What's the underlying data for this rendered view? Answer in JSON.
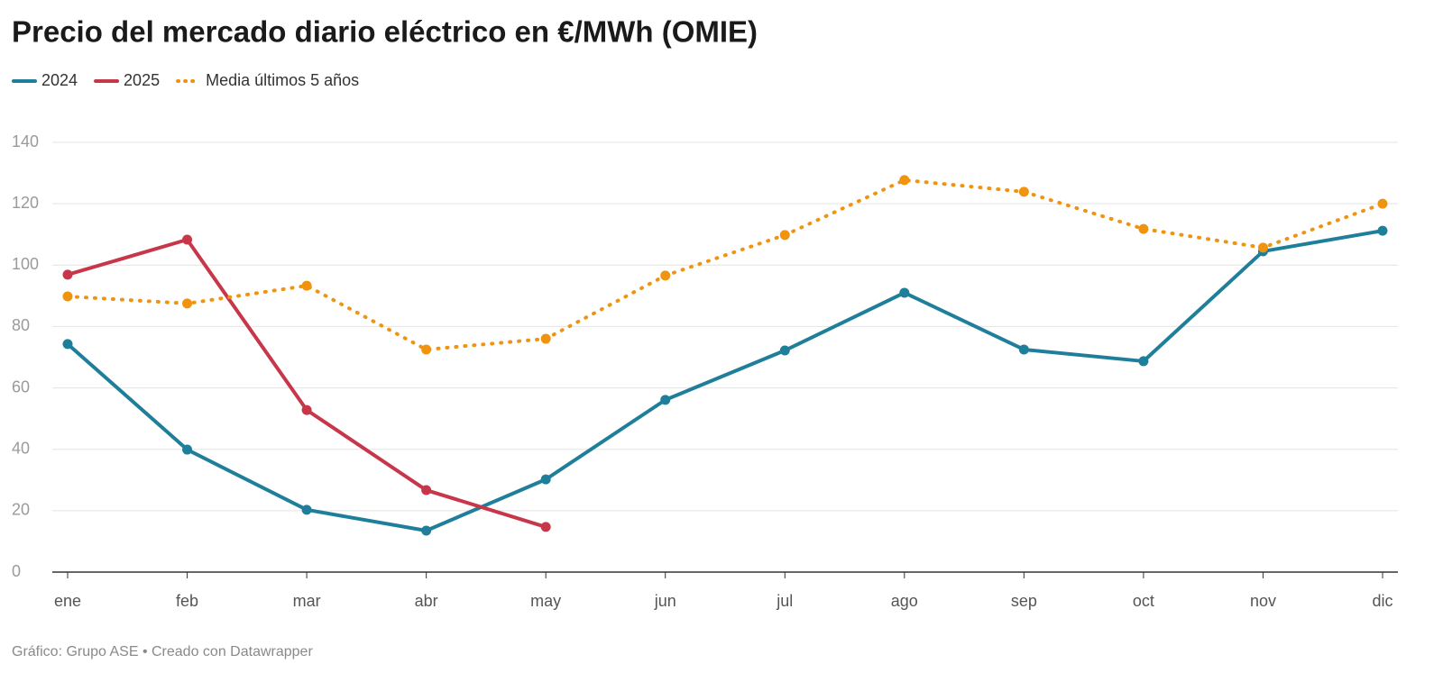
{
  "chart_data": {
    "type": "line",
    "title": "Precio del mercado diario eléctrico en €/MWh (OMIE)",
    "source": "Gráfico: Grupo ASE • Creado con Datawrapper",
    "categories": [
      "ene",
      "feb",
      "mar",
      "abr",
      "may",
      "jun",
      "jul",
      "ago",
      "sep",
      "oct",
      "nov",
      "dic"
    ],
    "series": [
      {
        "name": "2024",
        "color": "#1f7f9a",
        "style": "solid",
        "values": [
          74.3,
          39.9,
          20.3,
          13.5,
          30.2,
          56.1,
          72.2,
          91.0,
          72.5,
          68.7,
          104.5,
          111.2
        ]
      },
      {
        "name": "2025",
        "color": "#c8364a",
        "style": "solid",
        "values": [
          96.9,
          108.3,
          52.8,
          26.7,
          14.7,
          null,
          null,
          null,
          null,
          null,
          null,
          null
        ]
      },
      {
        "name": "Media últimos 5 años",
        "color": "#f0940f",
        "style": "dotted",
        "values": [
          89.8,
          87.5,
          93.3,
          72.5,
          76.0,
          96.6,
          109.8,
          127.7,
          123.9,
          111.8,
          105.7,
          120.0
        ]
      }
    ],
    "ylim": [
      0,
      140
    ],
    "yticks": [
      0,
      20,
      40,
      60,
      80,
      100,
      120,
      140
    ],
    "grid": true,
    "legend": "top-left"
  }
}
